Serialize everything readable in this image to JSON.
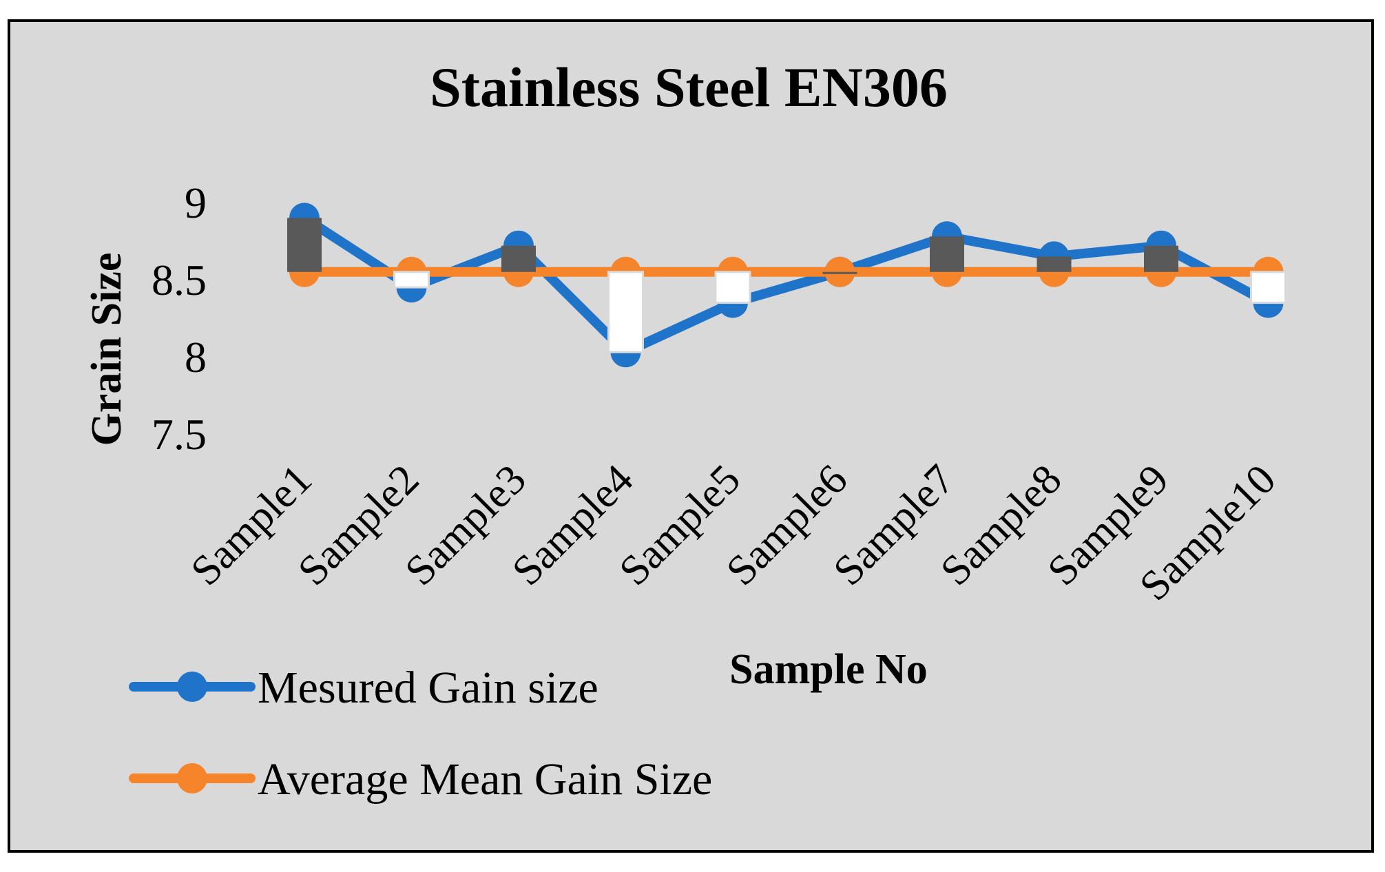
{
  "chart_data": {
    "type": "line",
    "title": "Stainless Steel EN306",
    "xlabel": "Sample No",
    "ylabel": "Grain Size",
    "categories": [
      "Sample1",
      "Sample2",
      "Sample3",
      "Sample4",
      "Sample5",
      "Sample6",
      "Sample7",
      "Sample8",
      "Sample9",
      "Sample10"
    ],
    "yticks": [
      "7.5",
      "8",
      "8.5",
      "9"
    ],
    "ylim": [
      7.5,
      9
    ],
    "grid": false,
    "legend_position": "bottom-left",
    "series": [
      {
        "name": "Mesured Gain size",
        "color": "#1f73c9",
        "values": [
          8.9,
          8.45,
          8.72,
          8.03,
          8.35,
          8.55,
          8.78,
          8.65,
          8.72,
          8.35
        ]
      },
      {
        "name": "Average Mean Gain Size",
        "color": "#f5842a",
        "values": [
          8.55,
          8.55,
          8.55,
          8.55,
          8.55,
          8.55,
          8.55,
          8.55,
          8.55,
          8.55
        ]
      }
    ],
    "updown_bars": {
      "up_color": "#595959",
      "down_color": "#ffffff"
    }
  }
}
